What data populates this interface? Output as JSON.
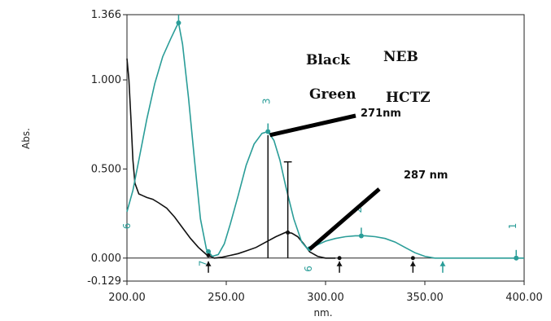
{
  "chart_data": {
    "type": "line",
    "xlabel": "nm.",
    "ylabel": "Abs.",
    "xlim": [
      200,
      400
    ],
    "ylim": [
      -0.129,
      1.366
    ],
    "x_ticks": [
      "200.00",
      "250.00",
      "300.00",
      "350.00",
      "400.00"
    ],
    "y_ticks": [
      "1.366",
      "1.000",
      "0.500",
      "0.000",
      "-0.129"
    ],
    "legend": [
      {
        "label": "Black",
        "series": "NEB"
      },
      {
        "label": "Green",
        "series": "HCTZ"
      }
    ],
    "series": [
      {
        "name": "NEB",
        "color": "#111111",
        "x": [
          200,
          201,
          202,
          203,
          204,
          206,
          208,
          210,
          213,
          216,
          220,
          224,
          228,
          232,
          236,
          240,
          244,
          248,
          252,
          256,
          260,
          265,
          270,
          275,
          280,
          283,
          286,
          289,
          292,
          296,
          300,
          305
        ],
        "y": [
          1.12,
          1.0,
          0.78,
          0.55,
          0.42,
          0.36,
          0.35,
          0.34,
          0.33,
          0.31,
          0.28,
          0.23,
          0.17,
          0.11,
          0.06,
          0.02,
          0.0,
          0.005,
          0.015,
          0.025,
          0.04,
          0.06,
          0.09,
          0.12,
          0.145,
          0.14,
          0.12,
          0.08,
          0.035,
          0.01,
          0.0,
          0.0
        ]
      },
      {
        "name": "HCTZ",
        "color": "#2a9d98",
        "x": [
          200,
          203,
          206,
          210,
          214,
          218,
          222,
          225,
          226,
          228,
          231,
          234,
          237,
          240,
          243,
          246,
          249,
          252,
          256,
          260,
          264,
          268,
          271,
          274,
          277,
          280,
          284,
          288,
          291,
          293,
          296,
          300,
          305,
          310,
          315,
          320,
          325,
          330,
          335,
          340,
          345,
          350,
          355,
          360,
          370,
          380,
          390,
          400
        ],
        "y": [
          0.26,
          0.38,
          0.55,
          0.78,
          0.98,
          1.13,
          1.23,
          1.3,
          1.32,
          1.2,
          0.9,
          0.55,
          0.22,
          0.05,
          0.01,
          0.02,
          0.08,
          0.19,
          0.35,
          0.52,
          0.64,
          0.7,
          0.71,
          0.66,
          0.55,
          0.4,
          0.22,
          0.09,
          0.05,
          0.055,
          0.075,
          0.095,
          0.11,
          0.12,
          0.125,
          0.125,
          0.12,
          0.11,
          0.09,
          0.06,
          0.03,
          0.01,
          0.0,
          0.0,
          0.0,
          0.0,
          0.0,
          0.0
        ]
      }
    ],
    "annotations": [
      {
        "text": "271nm",
        "x": 271,
        "y": 0.71
      },
      {
        "text": "287 nm",
        "x": 292,
        "y": 0.05
      }
    ],
    "peak_labels": [
      {
        "text": "1",
        "x": 396,
        "y": 0.18
      },
      {
        "text": "2",
        "x": 318,
        "y": 0.27
      },
      {
        "text": "3",
        "x": 272,
        "y": 0.88
      },
      {
        "text": "6",
        "x": 293,
        "y": -0.06
      },
      {
        "text": "7",
        "x": 240,
        "y": -0.03
      }
    ],
    "markers_hctz_x": [
      226,
      271,
      318,
      396,
      241,
      292
    ],
    "markers_neb_x": [
      241,
      281,
      307,
      344
    ],
    "up_arrows_x": [
      241,
      307,
      344,
      359
    ],
    "vertical_lines": [
      {
        "x": 271,
        "y": 0.69
      },
      {
        "x": 281,
        "y": 0.54
      }
    ]
  }
}
